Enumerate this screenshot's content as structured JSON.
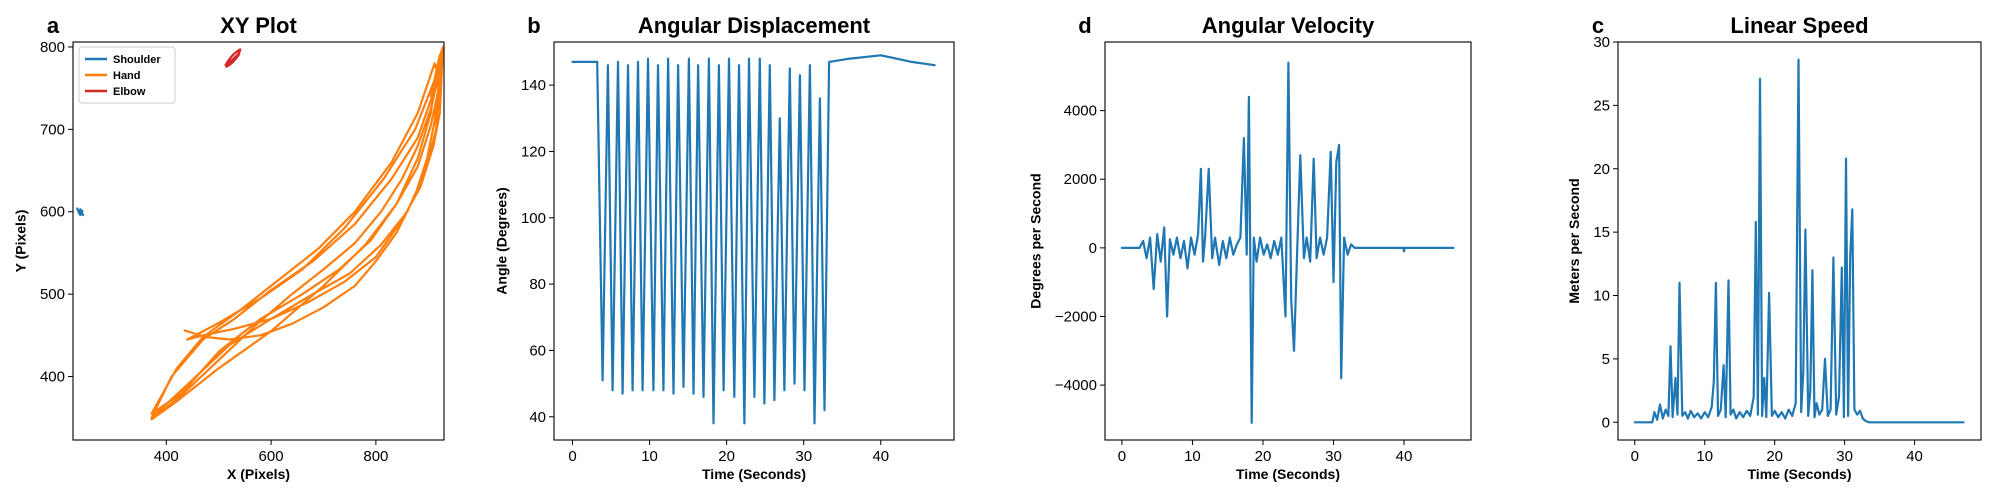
{
  "chart_data": [
    {
      "type": "line",
      "letter": "a",
      "title": "XY Plot",
      "xlabel": "X (Pixels)",
      "ylabel": "Y (Pixels)",
      "xlim": [
        222,
        930
      ],
      "ylim": [
        323,
        806
      ],
      "xticks": [
        400,
        600,
        800
      ],
      "yticks": [
        400,
        500,
        600,
        700,
        800
      ],
      "grid": false,
      "legend": "top-left",
      "series": [
        {
          "name": "Shoulder",
          "color": "#1f77b4",
          "x": [
            230,
            234,
            238,
            236,
            240,
            235,
            232,
            237,
            241,
            236
          ],
          "y": [
            604,
            598,
            600,
            596,
            601,
            597,
            602,
            599,
            596,
            603
          ]
        },
        {
          "name": "Hand",
          "color": "#ff7f0e",
          "x": [
            435,
            475,
            520,
            580,
            640,
            700,
            760,
            800,
            840,
            875,
            898,
            912,
            920,
            924,
            915,
            905,
            880,
            840,
            780,
            700,
            600,
            500,
            420,
            372,
            430,
            500,
            570,
            640,
            700,
            760,
            810,
            850,
            880,
            905,
            918,
            922,
            910,
            880,
            830,
            760,
            680,
            600,
            530,
            470,
            410,
            372,
            440,
            520,
            600,
            680,
            750,
            810,
            860,
            895,
            915,
            923,
            912,
            880,
            830,
            760,
            690,
            610,
            540,
            470,
            420,
            372,
            430,
            500,
            580,
            660,
            730,
            790,
            840,
            880,
            905,
            920,
            926,
            912,
            875,
            815,
            740,
            660,
            580,
            500,
            440,
            470,
            530,
            600,
            670,
            740,
            800,
            850,
            885,
            910,
            922,
            925,
            928,
            920,
            905
          ],
          "y": [
            456,
            448,
            445,
            450,
            464,
            484,
            510,
            540,
            575,
            620,
            665,
            710,
            755,
            790,
            770,
            720,
            665,
            610,
            560,
            510,
            455,
            410,
            370,
            348,
            378,
            420,
            462,
            500,
            530,
            562,
            600,
            640,
            680,
            725,
            760,
            790,
            745,
            690,
            640,
            585,
            540,
            505,
            470,
            445,
            400,
            350,
            390,
            438,
            470,
            500,
            525,
            560,
            600,
            650,
            700,
            760,
            780,
            720,
            660,
            600,
            555,
            515,
            480,
            448,
            410,
            355,
            380,
            430,
            470,
            500,
            530,
            565,
            610,
            655,
            705,
            750,
            795,
            760,
            700,
            640,
            580,
            530,
            495,
            465,
            445,
            450,
            458,
            470,
            490,
            515,
            545,
            590,
            630,
            680,
            720,
            760,
            800,
            785,
            740
          ]
        },
        {
          "name": "Elbow",
          "color": "#d62728",
          "x": [
            513,
            518,
            524,
            530,
            536,
            541,
            538,
            532,
            526,
            520,
            515,
            522,
            530,
            537,
            541
          ],
          "y": [
            778,
            783,
            788,
            792,
            795,
            797,
            790,
            785,
            781,
            778,
            776,
            782,
            787,
            791,
            796
          ]
        }
      ]
    },
    {
      "type": "line",
      "letter": "b",
      "title": "Angular Displacement",
      "xlabel": "Time (Seconds)",
      "ylabel": "Angle (Degrees)",
      "xlim": [
        -2.4,
        49.5
      ],
      "ylim": [
        33,
        153
      ],
      "xticks": [
        0,
        10,
        20,
        30,
        40
      ],
      "yticks": [
        40,
        60,
        80,
        100,
        120,
        140
      ],
      "grid": false,
      "series": [
        {
          "color": "#1f77b4",
          "x": [
            0,
            2.5,
            3.2,
            3.9,
            4.6,
            5.2,
            5.9,
            6.5,
            7.2,
            7.8,
            8.5,
            9.1,
            9.8,
            10.5,
            11.1,
            11.8,
            12.4,
            13.1,
            13.7,
            14.4,
            15.1,
            15.7,
            16.3,
            17.0,
            17.7,
            18.3,
            19.0,
            19.6,
            20.3,
            21.0,
            21.6,
            22.3,
            22.9,
            23.6,
            24.3,
            24.9,
            25.6,
            26.2,
            26.9,
            27.5,
            28.2,
            28.8,
            29.5,
            30.1,
            30.8,
            31.4,
            32.1,
            32.7,
            33.3,
            36,
            40,
            44,
            47
          ],
          "y": [
            147,
            147,
            147,
            51,
            146,
            48,
            147,
            47,
            146,
            48,
            147,
            48,
            148,
            48,
            146,
            48,
            148,
            47,
            146,
            49,
            148,
            47,
            146,
            46,
            148,
            38,
            146,
            48,
            148,
            46,
            146,
            38,
            148,
            46,
            148,
            44,
            146,
            45,
            130,
            48,
            145,
            50,
            143,
            48,
            146,
            38,
            136,
            42,
            147,
            148,
            149,
            147,
            146
          ]
        }
      ]
    },
    {
      "type": "line",
      "letter": "d",
      "title": "Angular Velocity",
      "xlabel": "Time (Seconds)",
      "ylabel": "Degrees per Second",
      "xlim": [
        -2.4,
        49.5
      ],
      "ylim": [
        -5600,
        6000
      ],
      "xticks": [
        0,
        10,
        20,
        30,
        40
      ],
      "yticks": [
        -4000,
        -2000,
        0,
        2000,
        4000
      ],
      "grid": false,
      "series": [
        {
          "color": "#1f77b4",
          "x": [
            0,
            2.5,
            3.0,
            3.5,
            4.0,
            4.5,
            5.0,
            5.5,
            6.0,
            6.4,
            6.8,
            7.3,
            7.8,
            8.3,
            8.8,
            9.3,
            9.8,
            10.3,
            10.8,
            11.2,
            11.5,
            11.8,
            12.3,
            12.8,
            13.2,
            13.8,
            14.3,
            14.8,
            15.3,
            15.8,
            16.3,
            16.8,
            17.3,
            17.7,
            18.0,
            18.4,
            18.7,
            19.1,
            19.6,
            20.1,
            20.6,
            21.1,
            21.6,
            22.1,
            22.6,
            23.2,
            23.6,
            24.0,
            24.4,
            24.9,
            25.3,
            25.8,
            26.2,
            26.7,
            27.2,
            27.6,
            28.1,
            28.6,
            29.1,
            29.6,
            30.0,
            30.4,
            30.8,
            31.1,
            31.5,
            32.0,
            32.5,
            33.0,
            33.5,
            36,
            39.9,
            40,
            40.1,
            44,
            47
          ],
          "y": [
            0,
            0,
            200,
            -300,
            300,
            -1200,
            400,
            -400,
            600,
            -2000,
            250,
            -200,
            300,
            -300,
            200,
            -600,
            300,
            -200,
            400,
            2300,
            -400,
            300,
            2300,
            -300,
            300,
            -500,
            200,
            -300,
            300,
            -200,
            100,
            300,
            3200,
            -200,
            4400,
            -5100,
            300,
            -400,
            300,
            -200,
            100,
            -300,
            200,
            -200,
            300,
            -2000,
            5400,
            -1500,
            -3000,
            200,
            2700,
            -300,
            300,
            -400,
            2600,
            -300,
            300,
            -200,
            300,
            2800,
            -1000,
            2500,
            3000,
            -3800,
            300,
            -200,
            100,
            0,
            0,
            0,
            0,
            -100,
            0,
            0,
            0
          ]
        }
      ]
    },
    {
      "type": "line",
      "letter": "c",
      "title": "Linear Speed",
      "xlabel": "Time (Seconds)",
      "ylabel": "Meters per Second",
      "xlim": [
        -2.4,
        49.5
      ],
      "ylim": [
        -1.4,
        30
      ],
      "xticks": [
        0,
        10,
        20,
        30,
        40
      ],
      "yticks": [
        0,
        5,
        10,
        15,
        20,
        25,
        30
      ],
      "grid": false,
      "series": [
        {
          "color": "#1f77b4",
          "x": [
            0,
            2.5,
            2.8,
            3.2,
            3.6,
            4.0,
            4.4,
            4.8,
            5.1,
            5.4,
            5.8,
            6.1,
            6.4,
            6.8,
            7.2,
            7.6,
            8.0,
            8.5,
            9.0,
            9.5,
            10.0,
            10.5,
            11.0,
            11.3,
            11.6,
            11.9,
            12.3,
            12.7,
            13.0,
            13.4,
            13.7,
            14.1,
            14.5,
            15.0,
            15.5,
            16.0,
            16.5,
            17.0,
            17.3,
            17.6,
            17.9,
            18.2,
            18.5,
            18.8,
            19.2,
            19.6,
            20.0,
            20.5,
            21.0,
            21.5,
            22.0,
            22.5,
            23.0,
            23.4,
            23.8,
            24.1,
            24.4,
            24.8,
            25.1,
            25.4,
            25.7,
            26.0,
            26.4,
            26.8,
            27.2,
            27.6,
            28.0,
            28.4,
            28.8,
            29.2,
            29.6,
            29.9,
            30.2,
            30.5,
            30.8,
            31.1,
            31.4,
            31.8,
            32.2,
            32.6,
            33.0,
            33.5,
            36,
            40,
            44,
            47
          ],
          "y": [
            0,
            0,
            0.8,
            0.2,
            1.4,
            0.3,
            1.0,
            0.5,
            6.0,
            0.4,
            3.5,
            0.6,
            11.0,
            0.5,
            0.8,
            0.3,
            0.9,
            0.4,
            0.7,
            0.3,
            0.8,
            0.4,
            1.2,
            3.2,
            11.0,
            0.5,
            1.0,
            4.5,
            0.4,
            11.2,
            0.6,
            1.0,
            0.3,
            0.8,
            0.4,
            0.9,
            0.5,
            2.0,
            15.8,
            0.6,
            27.1,
            0.5,
            3.5,
            0.4,
            10.2,
            0.5,
            0.9,
            0.4,
            0.8,
            0.3,
            1.0,
            0.5,
            1.5,
            28.6,
            0.8,
            4.0,
            15.2,
            0.5,
            2.5,
            12.0,
            0.4,
            1.5,
            0.6,
            1.0,
            5.0,
            0.5,
            1.0,
            13.0,
            0.6,
            2.0,
            12.2,
            0.4,
            20.8,
            0.5,
            13.0,
            16.8,
            1.0,
            0.6,
            0.9,
            0.3,
            0.1,
            0,
            0,
            0,
            0,
            0
          ]
        }
      ]
    }
  ]
}
